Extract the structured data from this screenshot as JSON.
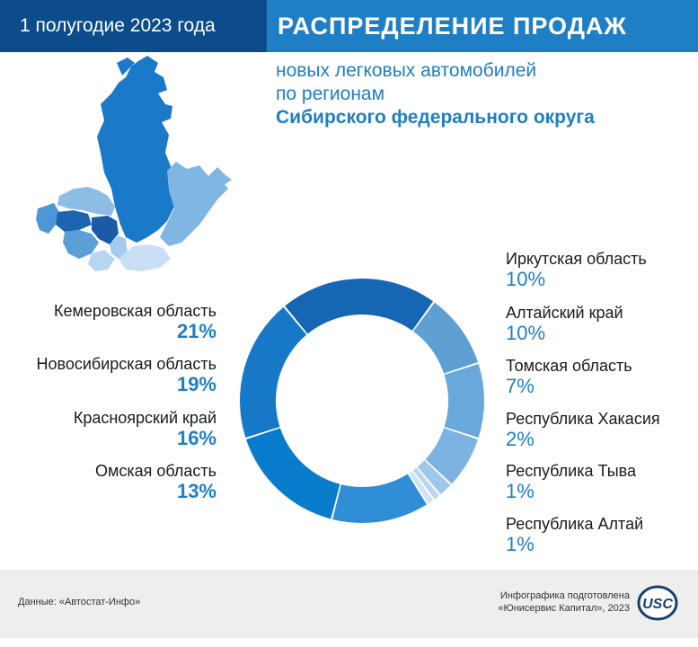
{
  "header": {
    "period": "1 полугодие 2023 года",
    "title": "РАСПРЕДЕЛЕНИЕ ПРОДАЖ"
  },
  "subtitle": {
    "line1": "новых легковых автомобилей",
    "line2": "по регионам",
    "line3": "Сибирского федерального округа"
  },
  "colors": {
    "header_dark": "#0c4c8a",
    "header_accent": "#1f7fc4",
    "percent_text": "#1f7fc4"
  },
  "chart_data": {
    "type": "pie",
    "donut": true,
    "slices": [
      {
        "label": "Иркутская область",
        "value": 10,
        "display": "10%",
        "color": "#5e9fd4"
      },
      {
        "label": "Алтайский край",
        "value": 10,
        "display": "10%",
        "color": "#68a8da"
      },
      {
        "label": "Томская область",
        "value": 7,
        "display": "7%",
        "color": "#7cb3e0"
      },
      {
        "label": "Республика Хакасия",
        "value": 2,
        "display": "2%",
        "color": "#9ec8ea"
      },
      {
        "label": "Республика Тыва",
        "value": 1,
        "display": "1%",
        "color": "#b7d7f0"
      },
      {
        "label": "Республика Алтай",
        "value": 1,
        "display": "1%",
        "color": "#cfe4f6"
      },
      {
        "label": "Омская область",
        "value": 13,
        "display": "13%",
        "color": "#2f8ed6"
      },
      {
        "label": "Красноярский край",
        "value": 16,
        "display": "16%",
        "color": "#0a7ccc"
      },
      {
        "label": "Новосибирская область",
        "value": 19,
        "display": "19%",
        "color": "#1678c6"
      },
      {
        "label": "Кемеровская область",
        "value": 21,
        "display": "21%",
        "color": "#1567b4"
      }
    ]
  },
  "legend_left": [
    {
      "label": "Кемеровская область",
      "pct": "21%"
    },
    {
      "label": "Новосибирская область",
      "pct": "19%"
    },
    {
      "label": "Красноярский край",
      "pct": "16%"
    },
    {
      "label": "Омская область",
      "pct": "13%"
    }
  ],
  "legend_right": [
    {
      "label": "Иркутская область",
      "pct": "10%"
    },
    {
      "label": "Алтайский край",
      "pct": "10%"
    },
    {
      "label": "Томская область",
      "pct": "7%"
    },
    {
      "label": "Республика Хакасия",
      "pct": "2%"
    },
    {
      "label": "Республика Тыва",
      "pct": "1%"
    },
    {
      "label": "Республика Алтай",
      "pct": "1%"
    }
  ],
  "footer": {
    "source": "Данные: «Автостат-Инфо»",
    "credit_line1": "Инфографика подготовлена",
    "credit_line2": "«Юнисервис Капитал», 2023",
    "logo_text": "USC"
  }
}
